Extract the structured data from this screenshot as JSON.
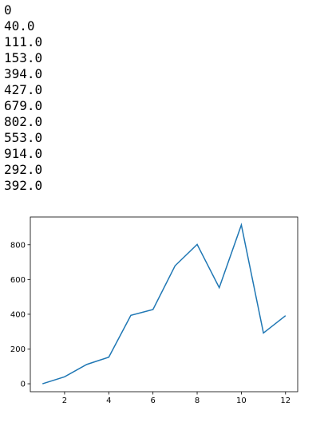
{
  "output_lines": [
    "0",
    "40.0",
    "111.0",
    "153.0",
    "394.0",
    "427.0",
    "679.0",
    "802.0",
    "553.0",
    "914.0",
    "292.0",
    "392.0"
  ],
  "chart_data": {
    "type": "line",
    "x": [
      1,
      2,
      3,
      4,
      5,
      6,
      7,
      8,
      9,
      10,
      11,
      12
    ],
    "series": [
      {
        "color": "#1f77b4",
        "values": [
          0,
          40,
          111,
          153,
          394,
          427,
          679,
          802,
          553,
          914,
          292,
          392
        ]
      }
    ],
    "xlim": [
      0.45,
      12.55
    ],
    "xticks": [
      2,
      4,
      6,
      8,
      10,
      12
    ],
    "ylim": [
      -45.7,
      959.7
    ],
    "yticks": [
      0,
      200,
      400,
      600,
      800
    ]
  }
}
